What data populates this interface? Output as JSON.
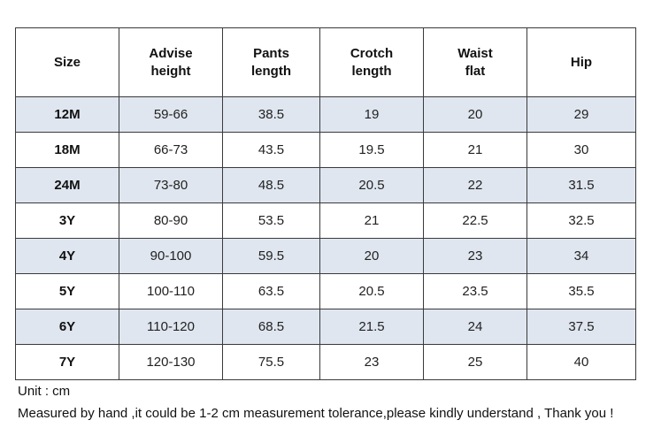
{
  "table": {
    "headers": [
      [
        "Size"
      ],
      [
        "Advise",
        "height"
      ],
      [
        "Pants",
        "length"
      ],
      [
        "Crotch",
        "length"
      ],
      [
        "Waist",
        "flat"
      ],
      [
        "Hip"
      ]
    ],
    "rows": [
      [
        "12M",
        "59-66",
        "38.5",
        "19",
        "20",
        "29"
      ],
      [
        "18M",
        "66-73",
        "43.5",
        "19.5",
        "21",
        "30"
      ],
      [
        "24M",
        "73-80",
        "48.5",
        "20.5",
        "22",
        "31.5"
      ],
      [
        "3Y",
        "80-90",
        "53.5",
        "21",
        "22.5",
        "32.5"
      ],
      [
        "4Y",
        "90-100",
        "59.5",
        "20",
        "23",
        "34"
      ],
      [
        "5Y",
        "100-110",
        "63.5",
        "20.5",
        "23.5",
        "35.5"
      ],
      [
        "6Y",
        "110-120",
        "68.5",
        "21.5",
        "24",
        "37.5"
      ],
      [
        "7Y",
        "120-130",
        "75.5",
        "23",
        "25",
        "40"
      ]
    ],
    "shade_color": "#dfe6ef"
  },
  "notes": {
    "unit": "Unit : cm",
    "measure": "Measured by hand ,it could be 1-2 cm measurement tolerance,please kindly understand , Thank you !"
  }
}
